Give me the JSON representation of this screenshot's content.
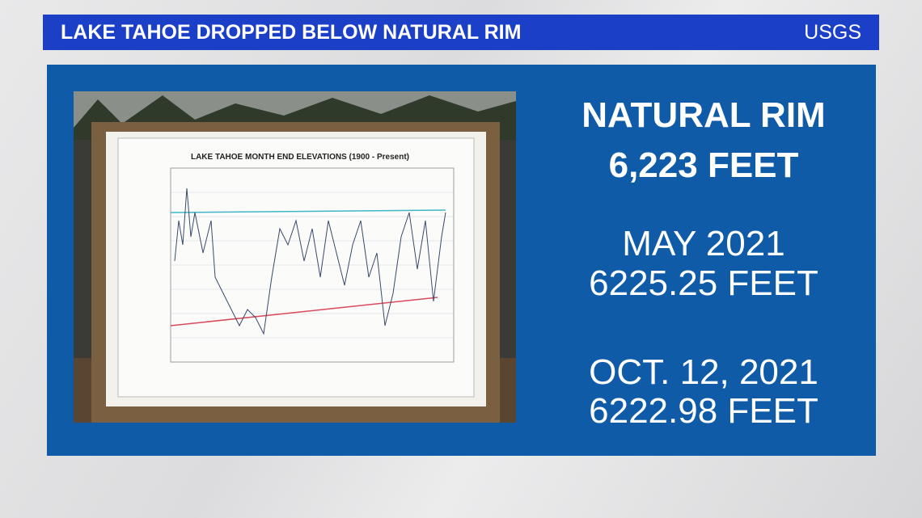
{
  "header": {
    "title": "LAKE TAHOE DROPPED BELOW NATURAL RIM",
    "source": "USGS"
  },
  "photo": {
    "chart_title": "LAKE TAHOE MONTH END ELEVATIONS  (1900 - Present)"
  },
  "panel": {
    "lines": [
      "NATURAL RIM",
      "6,223 FEET",
      "MAY 2021",
      "6225.25 FEET",
      "OCT. 12, 2021",
      "6222.98 FEET"
    ]
  }
}
